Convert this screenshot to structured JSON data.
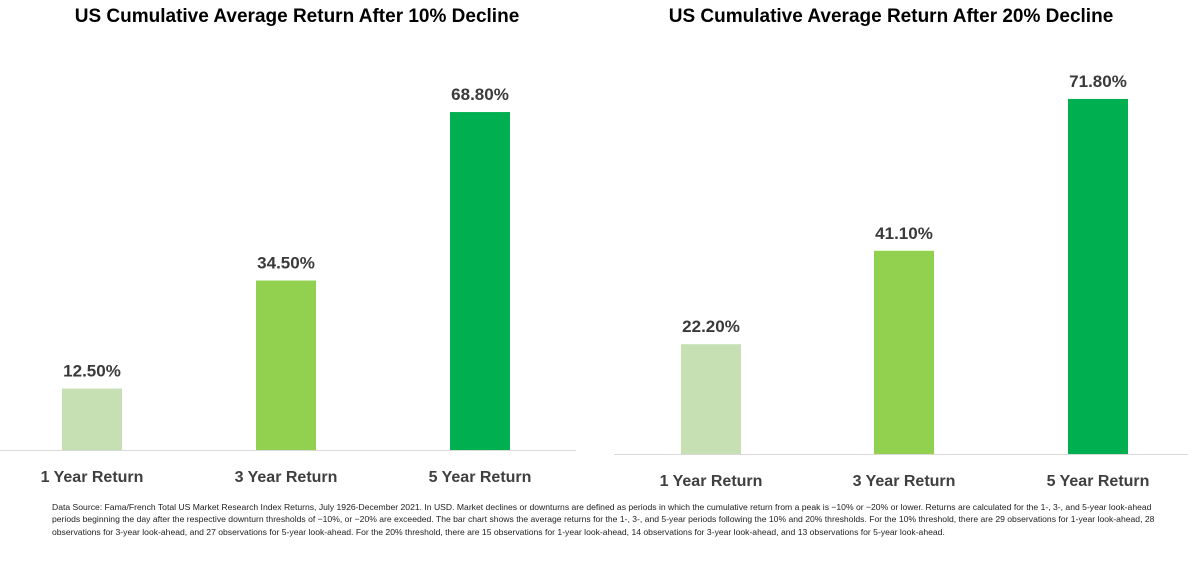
{
  "chart_data": [
    {
      "type": "bar",
      "title": "US Cumulative Average Return After 10% Decline",
      "categories": [
        "1 Year Return",
        "3 Year Return",
        "5 Year Return"
      ],
      "values": [
        12.5,
        34.5,
        68.8
      ],
      "value_labels": [
        "12.50%",
        "34.50%",
        "68.80%"
      ],
      "colors": [
        "#c6e0b4",
        "#92d050",
        "#00b050"
      ],
      "ylim": [
        0,
        80
      ],
      "grid": false,
      "legend": "none"
    },
    {
      "type": "bar",
      "title": "US Cumulative Average Return After 20% Decline",
      "categories": [
        "1 Year Return",
        "3 Year Return",
        "5 Year Return"
      ],
      "values": [
        22.2,
        41.1,
        71.8
      ],
      "value_labels": [
        "22.20%",
        "41.10%",
        "71.80%"
      ],
      "colors": [
        "#c6e0b4",
        "#92d050",
        "#00b050"
      ],
      "ylim": [
        0,
        80
      ],
      "grid": false,
      "legend": "none"
    }
  ],
  "footnote": "Data Source: Fama/French Total US Market Research Index Returns, July 1926-December 2021. In USD. Market declines or downturns are defined as periods in which the cumulative return from a peak is −10% or −20% or lower. Returns are calculated for the 1-, 3-, and 5-year look-ahead periods beginning the day after the respective downturn thresholds of −10%, or −20% are exceeded. The bar chart shows the average returns for the 1-, 3-, and 5-year periods following the 10% and 20% thresholds. For the 10% threshold, there are 29 observations for 1-year look-ahead, 28 observations for 3-year look-ahead, and 27 observations for 5-year look-ahead. For the 20% threshold, there are 15 observations for 1-year look-ahead, 14 observations for 3-year look-ahead, and 13 observations for 5-year look-ahead."
}
